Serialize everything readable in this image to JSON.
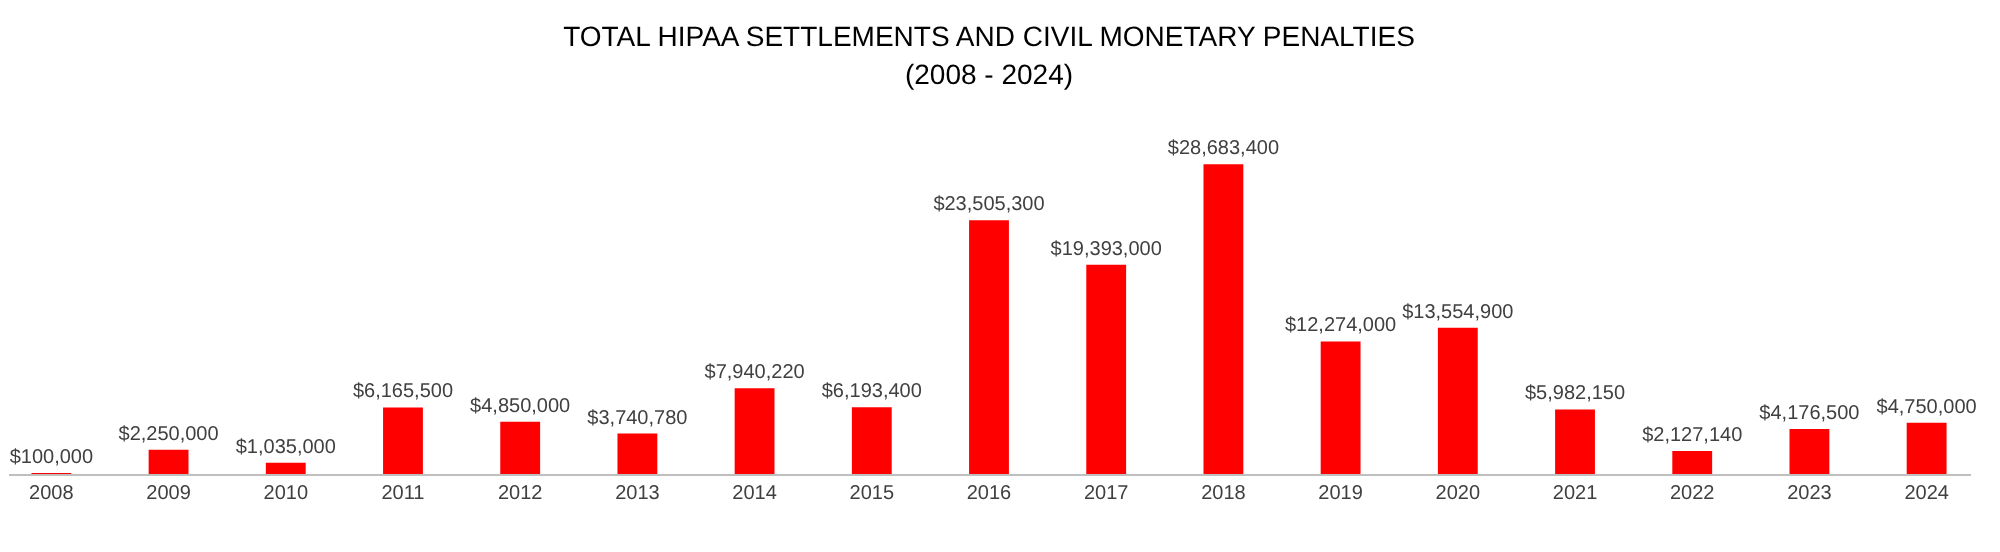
{
  "chart_data": {
    "type": "bar",
    "title": "TOTAL HIPAA SETTLEMENTS AND CIVIL MONETARY PENALTIES",
    "subtitle": "(2008 - 2024)",
    "categories": [
      "2008",
      "2009",
      "2010",
      "2011",
      "2012",
      "2013",
      "2014",
      "2015",
      "2016",
      "2017",
      "2018",
      "2019",
      "2020",
      "2021",
      "2022",
      "2023",
      "2024"
    ],
    "values": [
      100000,
      2250000,
      1035000,
      6165500,
      4850000,
      3740780,
      7940220,
      6193400,
      23505300,
      19393000,
      28683400,
      12274000,
      13554900,
      5982150,
      2127140,
      4176500,
      4750000
    ],
    "value_labels": [
      "$100,000",
      "$2,250,000",
      "$1,035,000",
      "$6,165,500",
      "$4,850,000",
      "$3,740,780",
      "$7,940,220",
      "$6,193,400",
      "$23,505,300",
      "$19,393,000",
      "$28,683,400",
      "$12,274,000",
      "$13,554,900",
      "$5,982,150",
      "$2,127,140",
      "$4,176,500",
      "$4,750,000"
    ],
    "color": "#ff0000"
  }
}
